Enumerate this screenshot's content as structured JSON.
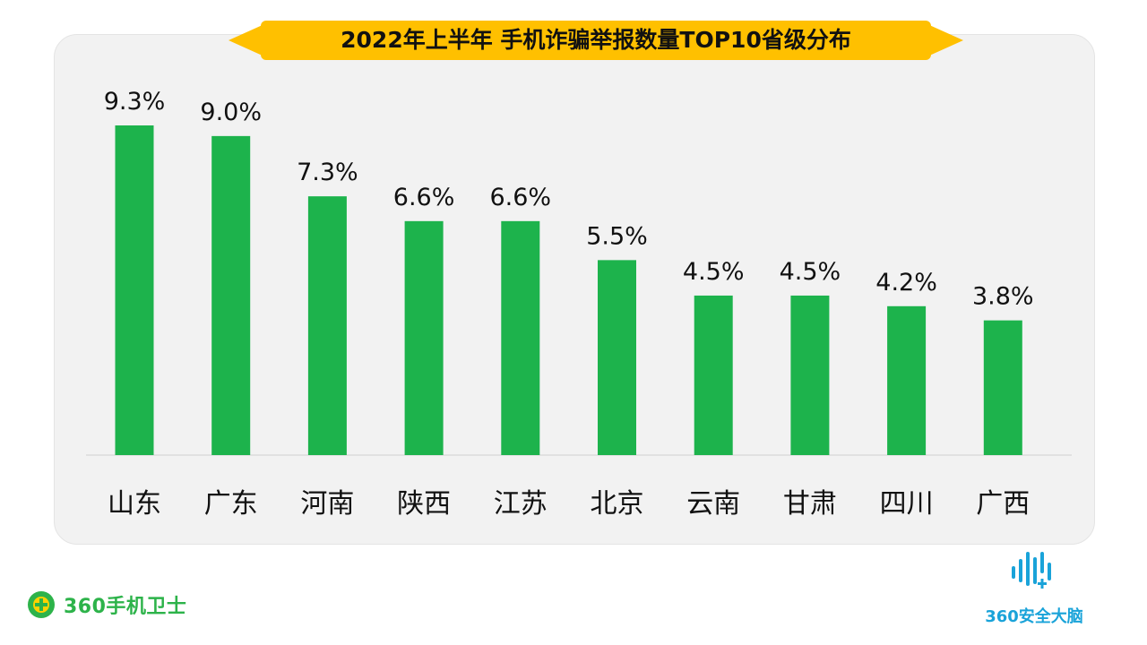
{
  "title": "2022年上半年 手机诈骗举报数量TOP10省级分布",
  "colors": {
    "bar": "#1db34c",
    "title_bg": "#ffc000",
    "panel_bg": "#f2f2f2",
    "brand_green": "#2db34a",
    "brand_blue": "#1aa3d9"
  },
  "chart_data": {
    "type": "bar",
    "title": "2022年上半年 手机诈骗举报数量TOP10省级分布",
    "categories": [
      "山东",
      "广东",
      "河南",
      "陕西",
      "江苏",
      "北京",
      "云南",
      "甘肃",
      "四川",
      "广西"
    ],
    "values": [
      9.3,
      9.0,
      7.3,
      6.6,
      6.6,
      5.5,
      4.5,
      4.5,
      4.2,
      3.8
    ],
    "value_labels": [
      "9.3%",
      "9.0%",
      "7.3%",
      "6.6%",
      "6.6%",
      "5.5%",
      "4.5%",
      "4.5%",
      "4.2%",
      "3.8%"
    ],
    "unit": "%",
    "ylim": [
      0,
      9.3
    ],
    "grid": false,
    "legend": "none"
  },
  "branding": {
    "left_text": "360手机卫士",
    "left_icon": "plus-badge-icon",
    "right_text": "360安全大脑",
    "right_icon": "sound-wave-icon"
  }
}
